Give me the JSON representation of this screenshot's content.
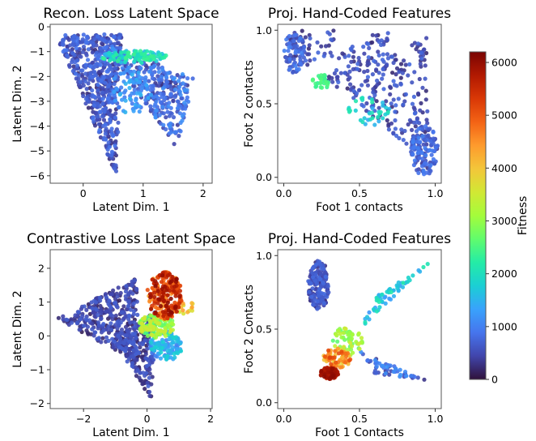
{
  "chart_data": [
    {
      "type": "scatter",
      "title": "Recon. Loss Latent Space",
      "xlabel": "Latent Dim. 1",
      "ylabel": "Latent Dim. 2",
      "xlim": [
        -0.55,
        2.15
      ],
      "ylim": [
        -6.3,
        0.1
      ],
      "xticks": [
        0,
        1,
        2
      ],
      "yticks": [
        0,
        -1,
        -2,
        -3,
        -4,
        -5,
        -6
      ],
      "grid": false,
      "regions": [
        {
          "kind": "tri",
          "a": [
            -0.45,
            -0.35
          ],
          "b": [
            0.65,
            -0.25
          ],
          "c": [
            0.55,
            -5.95
          ],
          "n": 560,
          "fit": [
            200,
            900
          ]
        },
        {
          "kind": "tri",
          "a": [
            0.35,
            -0.6
          ],
          "b": [
            1.85,
            -2.1
          ],
          "c": [
            1.55,
            -5.0
          ],
          "n": 300,
          "fit": [
            300,
            1200
          ]
        },
        {
          "kind": "ellipse",
          "center": [
            0.85,
            -1.2
          ],
          "r": [
            0.55,
            0.25
          ],
          "n": 110,
          "fit": [
            1400,
            2400
          ]
        },
        {
          "kind": "ellipse",
          "center": [
            0.8,
            -2.6
          ],
          "r": [
            0.35,
            0.9
          ],
          "n": 70,
          "fit": [
            900,
            1500
          ]
        },
        {
          "kind": "ellipse",
          "center": [
            1.4,
            -2.3
          ],
          "r": [
            0.25,
            0.15
          ],
          "n": 12,
          "fit": [
            200,
            400
          ]
        }
      ]
    },
    {
      "type": "scatter",
      "title": "Proj. Hand-Coded Features",
      "xlabel": "Foot 1 contacts",
      "ylabel": "Foot 2 contacts",
      "xlim": [
        -0.04,
        1.04
      ],
      "ylim": [
        -0.04,
        1.04
      ],
      "xticks": [
        0.0,
        0.5,
        1.0
      ],
      "yticks": [
        0.0,
        0.5,
        1.0
      ],
      "xtick_labels": [
        "0.0",
        "0.5",
        "1.0"
      ],
      "ytick_labels": [
        "0.0",
        "0.5",
        "1.0"
      ],
      "grid": false,
      "regions": [
        {
          "kind": "ellipse",
          "center": [
            0.07,
            0.85
          ],
          "r": [
            0.07,
            0.14
          ],
          "n": 70,
          "fit": [
            300,
            1000
          ]
        },
        {
          "kind": "rect",
          "x": [
            0.05,
            0.7
          ],
          "y": [
            0.75,
            1.0
          ],
          "n": 90,
          "fit": [
            200,
            800
          ]
        },
        {
          "kind": "ellipse",
          "center": [
            0.93,
            0.18
          ],
          "r": [
            0.09,
            0.17
          ],
          "n": 120,
          "fit": [
            300,
            1000
          ]
        },
        {
          "kind": "tri",
          "a": [
            0.25,
            0.7
          ],
          "b": [
            0.95,
            0.95
          ],
          "c": [
            0.95,
            0.1
          ],
          "n": 220,
          "fit": [
            200,
            800
          ]
        },
        {
          "kind": "ellipse",
          "center": [
            0.25,
            0.65
          ],
          "r": [
            0.06,
            0.05
          ],
          "n": 30,
          "fit": [
            2200,
            2600
          ]
        },
        {
          "kind": "ellipse",
          "center": [
            0.55,
            0.45
          ],
          "r": [
            0.15,
            0.1
          ],
          "n": 35,
          "fit": [
            1400,
            2200
          ]
        }
      ]
    },
    {
      "type": "scatter",
      "title": "Contrastive Loss Latent Space",
      "xlabel": "Latent Dim. 1",
      "ylabel": "Latent Dim. 2",
      "xlim": [
        -3.05,
        2.05
      ],
      "ylim": [
        -2.15,
        2.55
      ],
      "xticks": [
        -2,
        0,
        2
      ],
      "yticks": [
        -2,
        -1,
        0,
        1,
        2
      ],
      "grid": false,
      "regions": [
        {
          "kind": "tri",
          "a": [
            -2.85,
            0.5
          ],
          "b": [
            -0.3,
            1.75
          ],
          "c": [
            -0.3,
            -0.75
          ],
          "n": 360,
          "fit": [
            100,
            700
          ]
        },
        {
          "kind": "tri",
          "a": [
            -1.0,
            -0.2
          ],
          "b": [
            0.3,
            0.8
          ],
          "c": [
            0.15,
            -1.9
          ],
          "n": 200,
          "fit": [
            100,
            700
          ]
        },
        {
          "kind": "ellipse",
          "center": [
            0.6,
            -0.3
          ],
          "r": [
            0.5,
            0.45
          ],
          "n": 120,
          "fit": [
            900,
            1800
          ]
        },
        {
          "kind": "ellipse",
          "center": [
            0.3,
            0.3
          ],
          "r": [
            0.55,
            0.35
          ],
          "n": 130,
          "fit": [
            2300,
            3600
          ]
        },
        {
          "kind": "ellipse",
          "center": [
            0.55,
            1.2
          ],
          "r": [
            0.55,
            0.7
          ],
          "n": 240,
          "fit": [
            4300,
            6100
          ]
        },
        {
          "kind": "ellipse",
          "center": [
            1.2,
            0.85
          ],
          "r": [
            0.3,
            0.2
          ],
          "n": 15,
          "fit": [
            3600,
            4400
          ]
        }
      ]
    },
    {
      "type": "scatter",
      "title": "Proj. Hand-Coded Features",
      "xlabel": "Foot 1 Contacts",
      "ylabel": "Foot 2 Contacts",
      "xlim": [
        -0.04,
        1.04
      ],
      "ylim": [
        -0.04,
        1.04
      ],
      "xticks": [
        0.0,
        0.5,
        1.0
      ],
      "yticks": [
        0.0,
        0.5,
        1.0
      ],
      "xtick_labels": [
        "0.0",
        "0.5",
        "1.0"
      ],
      "ytick_labels": [
        "0.0",
        "0.5",
        "1.0"
      ],
      "grid": false,
      "regions": [
        {
          "kind": "ellipse",
          "center": [
            0.23,
            0.8
          ],
          "r": [
            0.07,
            0.17
          ],
          "n": 180,
          "fit": [
            200,
            800
          ]
        },
        {
          "kind": "ellipse",
          "center": [
            0.3,
            0.2
          ],
          "r": [
            0.06,
            0.04
          ],
          "n": 80,
          "fit": [
            5400,
            6100
          ]
        },
        {
          "kind": "ellipse",
          "center": [
            0.35,
            0.3
          ],
          "r": [
            0.09,
            0.07
          ],
          "n": 80,
          "fit": [
            3800,
            5200
          ]
        },
        {
          "kind": "ellipse",
          "center": [
            0.42,
            0.42
          ],
          "r": [
            0.1,
            0.1
          ],
          "n": 60,
          "fit": [
            2500,
            3600
          ]
        },
        {
          "kind": "tri",
          "a": [
            0.5,
            0.5
          ],
          "b": [
            0.97,
            0.96
          ],
          "c": [
            0.6,
            0.72
          ],
          "n": 60,
          "fit": [
            1200,
            2200
          ]
        },
        {
          "kind": "tri",
          "a": [
            0.5,
            0.35
          ],
          "b": [
            0.95,
            0.15
          ],
          "c": [
            0.6,
            0.2
          ],
          "n": 55,
          "fit": [
            300,
            1200
          ]
        }
      ]
    }
  ],
  "colorbar": {
    "label": "Fitness",
    "min": 0,
    "max": 6200,
    "ticks": [
      0,
      1000,
      2000,
      3000,
      4000,
      5000,
      6000
    ],
    "colormap": "turbo",
    "colors": [
      "#30123b",
      "#4145ab",
      "#4675ed",
      "#39a2fc",
      "#1bcfd4",
      "#24eca6",
      "#61fc6c",
      "#a4fc3b",
      "#d1e834",
      "#f3c63a",
      "#fe9b2d",
      "#f36315",
      "#d93806",
      "#b11901",
      "#7a0403"
    ]
  }
}
